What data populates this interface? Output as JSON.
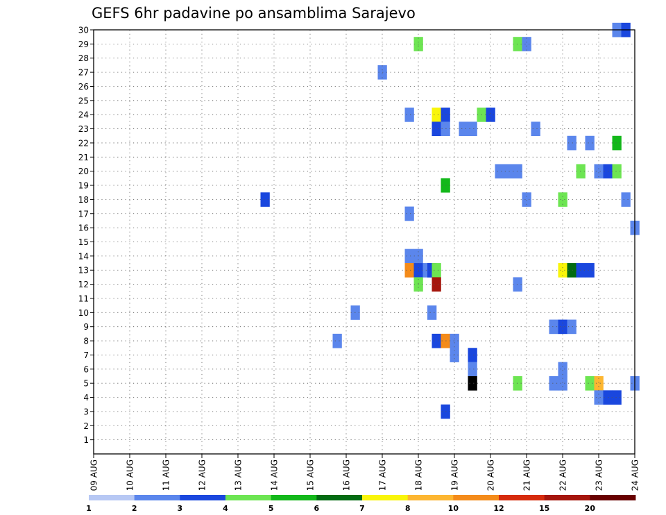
{
  "chart_data": {
    "type": "heatmap",
    "title": "GEFS 6hr padavine po ansamblima Sarajevo",
    "x_ticks": [
      "09 AUG",
      "10 AUG",
      "11 AUG",
      "12 AUG",
      "13 AUG",
      "14 AUG",
      "15 AUG",
      "16 AUG",
      "17 AUG",
      "18 AUG",
      "19 AUG",
      "20 AUG",
      "21 AUG",
      "22 AUG",
      "23 AUG",
      "24 AUG"
    ],
    "y_ticks": [
      "1",
      "2",
      "3",
      "4",
      "5",
      "6",
      "7",
      "8",
      "9",
      "10",
      "11",
      "12",
      "13",
      "14",
      "15",
      "16",
      "17",
      "18",
      "19",
      "20",
      "21",
      "22",
      "23",
      "24",
      "25",
      "26",
      "27",
      "28",
      "29",
      "30"
    ],
    "x_range": [
      "09 AUG",
      "24 AUG"
    ],
    "y_range": [
      0,
      30
    ],
    "grid": "dotted",
    "colorbar": {
      "colors": [
        "#b7c8f4",
        "#5b86ec",
        "#1a47de",
        "#6de552",
        "#13b81a",
        "#036b12",
        "#f9f50a",
        "#fdb631",
        "#f48b1a",
        "#d62b0c",
        "#a5150c",
        "#680000"
      ],
      "labels": [
        "1",
        "2",
        "3",
        "4",
        "5",
        "6",
        "7",
        "8",
        "10",
        "12",
        "15",
        "20"
      ],
      "label_at_boundary": [
        0,
        1,
        2,
        3,
        4,
        5,
        6,
        7,
        8,
        9,
        10,
        11
      ]
    },
    "cells": [
      {
        "t": 58.0,
        "m": 30,
        "v": 1
      },
      {
        "t": 59.0,
        "m": 30,
        "v": 2
      },
      {
        "t": 36.0,
        "m": 29,
        "v": 3
      },
      {
        "t": 47.0,
        "m": 29,
        "v": 3
      },
      {
        "t": 48.0,
        "m": 29,
        "v": 1
      },
      {
        "t": 32.0,
        "m": 27,
        "v": 1
      },
      {
        "t": 35.0,
        "m": 24,
        "v": 1
      },
      {
        "t": 38.0,
        "m": 24,
        "v": 6
      },
      {
        "t": 39.0,
        "m": 24,
        "v": 2
      },
      {
        "t": 43.0,
        "m": 24,
        "v": 3
      },
      {
        "t": 44.0,
        "m": 24,
        "v": 2
      },
      {
        "t": 38.0,
        "m": 23,
        "v": 2
      },
      {
        "t": 39.0,
        "m": 23,
        "v": 1
      },
      {
        "t": 41.0,
        "m": 23,
        "v": 1
      },
      {
        "t": 42.0,
        "m": 23,
        "v": 1
      },
      {
        "t": 49.0,
        "m": 23,
        "v": 1
      },
      {
        "t": 53.0,
        "m": 22,
        "v": 1
      },
      {
        "t": 55.0,
        "m": 22,
        "v": 1
      },
      {
        "t": 58.0,
        "m": 22,
        "v": 4
      },
      {
        "t": 45.0,
        "m": 20,
        "v": 1
      },
      {
        "t": 46.0,
        "m": 20,
        "v": 1
      },
      {
        "t": 47.0,
        "m": 20,
        "v": 1
      },
      {
        "t": 54.0,
        "m": 20,
        "v": 3
      },
      {
        "t": 56.0,
        "m": 20,
        "v": 1
      },
      {
        "t": 57.0,
        "m": 20,
        "v": 2
      },
      {
        "t": 58.0,
        "m": 20,
        "v": 3
      },
      {
        "t": 39.0,
        "m": 19,
        "v": 4
      },
      {
        "t": 19.0,
        "m": 18,
        "v": 2
      },
      {
        "t": 48.0,
        "m": 18,
        "v": 1
      },
      {
        "t": 52.0,
        "m": 18,
        "v": 3
      },
      {
        "t": 59.0,
        "m": 18,
        "v": 1
      },
      {
        "t": 35.0,
        "m": 17,
        "v": 1
      },
      {
        "t": 60.0,
        "m": 16,
        "v": 1
      },
      {
        "t": 35.0,
        "m": 14,
        "v": 1
      },
      {
        "t": 36.0,
        "m": 14,
        "v": 1
      },
      {
        "t": 35.0,
        "m": 13,
        "v": 8
      },
      {
        "t": 36.0,
        "m": 13,
        "v": 2
      },
      {
        "t": 37.0,
        "m": 13,
        "v": 1
      },
      {
        "t": 37.5,
        "m": 13,
        "v": 2
      },
      {
        "t": 38.0,
        "m": 13,
        "v": 3
      },
      {
        "t": 52.0,
        "m": 13,
        "v": 6
      },
      {
        "t": 53.0,
        "m": 13,
        "v": 5
      },
      {
        "t": 54.0,
        "m": 13,
        "v": 2
      },
      {
        "t": 55.0,
        "m": 13,
        "v": 2
      },
      {
        "t": 36.0,
        "m": 12,
        "v": 3
      },
      {
        "t": 38.0,
        "m": 12,
        "v": 10
      },
      {
        "t": 47.0,
        "m": 12,
        "v": 1
      },
      {
        "t": 29.0,
        "m": 10,
        "v": 1
      },
      {
        "t": 37.5,
        "m": 10,
        "v": 1
      },
      {
        "t": 51.0,
        "m": 9,
        "v": 1
      },
      {
        "t": 52.0,
        "m": 9,
        "v": 2
      },
      {
        "t": 53.0,
        "m": 9,
        "v": 1
      },
      {
        "t": 27.0,
        "m": 8,
        "v": 1
      },
      {
        "t": 38.0,
        "m": 8,
        "v": 2
      },
      {
        "t": 39.0,
        "m": 8,
        "v": 8
      },
      {
        "t": 40.0,
        "m": 8,
        "v": 1
      },
      {
        "t": 40.0,
        "m": 7,
        "v": 1
      },
      {
        "t": 42.0,
        "m": 7,
        "v": 2
      },
      {
        "t": 42.0,
        "m": 6,
        "v": 1
      },
      {
        "t": 52.0,
        "m": 6,
        "v": 1
      },
      {
        "t": 42.0,
        "m": 5,
        "v": 12
      },
      {
        "t": 47.0,
        "m": 5,
        "v": 3
      },
      {
        "t": 51.0,
        "m": 5,
        "v": 1
      },
      {
        "t": 52.0,
        "m": 5,
        "v": 1
      },
      {
        "t": 55.0,
        "m": 5,
        "v": 3
      },
      {
        "t": 56.0,
        "m": 5,
        "v": 7
      },
      {
        "t": 60.0,
        "m": 5,
        "v": 1
      },
      {
        "t": 56.0,
        "m": 4,
        "v": 1
      },
      {
        "t": 57.0,
        "m": 4,
        "v": 2
      },
      {
        "t": 58.0,
        "m": 4,
        "v": 2
      },
      {
        "t": 39.0,
        "m": 3,
        "v": 2
      }
    ]
  }
}
